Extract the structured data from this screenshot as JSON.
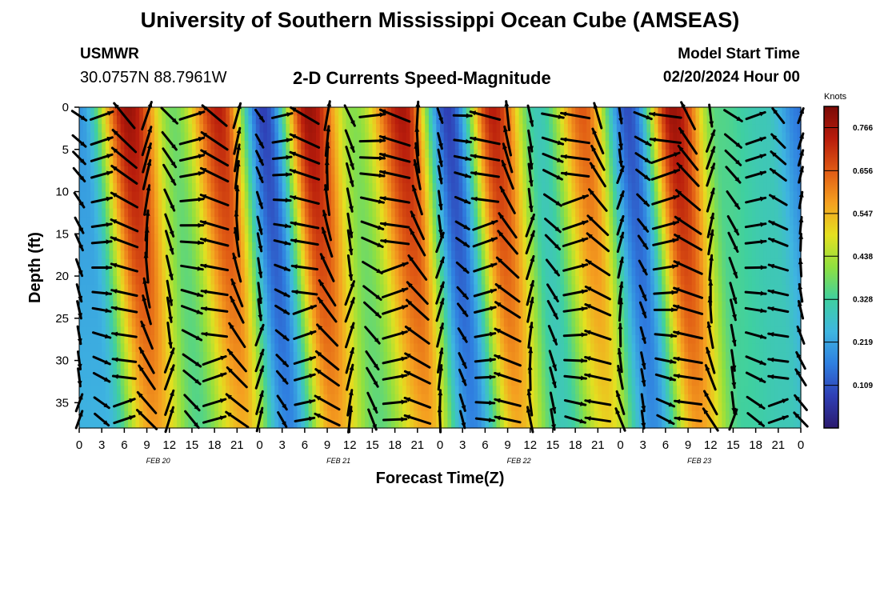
{
  "header": {
    "title": "University of Southern Mississippi Ocean Cube (AMSEAS)",
    "station": "USMWR",
    "coords": "30.0757N  88.7961W",
    "plot_title": "2-D Currents Speed-Magnitude",
    "model_start_label": "Model Start Time",
    "model_start_value": "02/20/2024 Hour 00"
  },
  "footer": {
    "title": "University of Southern Mississippi Ocean Cube (AMSEAS)"
  },
  "colors": {
    "background": "#ffffff",
    "arrow": "#000000"
  },
  "chart_data": {
    "type": "heatmap",
    "title": "2-D Currents Speed-Magnitude",
    "xlabel": "Forecast Time(Z)",
    "ylabel": "Depth (ft)",
    "x_hours_range": [
      0,
      96
    ],
    "y_depth_range_ft": [
      0,
      38
    ],
    "x_tick_labels": [
      "0",
      "3",
      "6",
      "9",
      "12",
      "15",
      "18",
      "21",
      "0",
      "3",
      "6",
      "9",
      "12",
      "15",
      "18",
      "21",
      "0",
      "3",
      "6",
      "9",
      "12",
      "15",
      "18",
      "21",
      "0",
      "3",
      "6",
      "9",
      "12",
      "15",
      "18",
      "21",
      "0"
    ],
    "y_ticks": [
      0,
      5,
      10,
      15,
      20,
      25,
      30,
      35
    ],
    "date_labels": [
      {
        "label": "FEB 20",
        "hour": 10.5
      },
      {
        "label": "FEB 21",
        "hour": 34.5
      },
      {
        "label": "FEB 22",
        "hour": 58.5
      },
      {
        "label": "FEB 23",
        "hour": 82.5
      }
    ],
    "colorbar": {
      "units": "Knots",
      "ticks": [
        "0.766",
        "0.656",
        "0.547",
        "0.438",
        "0.328",
        "0.219",
        "0.109"
      ],
      "tick_values": [
        0.766,
        0.656,
        0.547,
        0.438,
        0.328,
        0.219,
        0.109
      ],
      "range": [
        0.0,
        0.82
      ],
      "colormap": [
        "#2b1a6e",
        "#2f3fb5",
        "#2f7fe0",
        "#3fb6e0",
        "#3fd0a0",
        "#8fe040",
        "#e4e020",
        "#f5a020",
        "#e05a14",
        "#b81c0c",
        "#7a0a06"
      ]
    },
    "speed_peaks": [
      {
        "hour": 6.5,
        "speed": 0.78
      },
      {
        "hour": 18.5,
        "speed": 0.74
      },
      {
        "hour": 30.5,
        "speed": 0.78
      },
      {
        "hour": 43.0,
        "speed": 0.76
      },
      {
        "hour": 55.0,
        "speed": 0.74
      },
      {
        "hour": 67.0,
        "speed": 0.66
      },
      {
        "hour": 79.0,
        "speed": 0.78
      },
      {
        "hour": 91.0,
        "speed": 0.3
      }
    ],
    "speed_minima": [
      {
        "hour": 0,
        "speed": 0.2
      },
      {
        "hour": 12.5,
        "speed": 0.38
      },
      {
        "hour": 24.5,
        "speed": 0.08
      },
      {
        "hour": 36.5,
        "speed": 0.4
      },
      {
        "hour": 49.0,
        "speed": 0.08
      },
      {
        "hour": 61.0,
        "speed": 0.3
      },
      {
        "hour": 73.0,
        "speed": 0.1
      },
      {
        "hour": 85.0,
        "speed": 0.35
      },
      {
        "hour": 96,
        "speed": 0.15
      }
    ],
    "arrow_sample_step_hours": 3,
    "arrow_depths_ft": [
      1,
      4,
      6,
      8,
      11,
      14,
      16,
      19,
      22,
      24,
      27,
      30,
      32,
      35,
      37
    ]
  }
}
